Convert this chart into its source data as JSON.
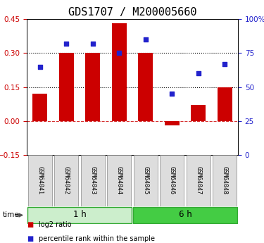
{
  "title": "GDS1707 / M200005660",
  "samples": [
    "GSM64041",
    "GSM64042",
    "GSM64043",
    "GSM64044",
    "GSM64045",
    "GSM64046",
    "GSM64047",
    "GSM64048"
  ],
  "log2_ratio": [
    0.12,
    0.3,
    0.3,
    0.43,
    0.3,
    -0.02,
    0.07,
    0.15
  ],
  "percentile_rank": [
    65,
    82,
    82,
    75,
    85,
    45,
    60,
    67
  ],
  "ylim_left": [
    -0.15,
    0.45
  ],
  "ylim_right": [
    0,
    100
  ],
  "yticks_left": [
    -0.15,
    0.0,
    0.15,
    0.3,
    0.45
  ],
  "yticks_right": [
    0,
    25,
    50,
    75,
    100
  ],
  "dotted_lines": [
    0.15,
    0.3
  ],
  "zero_line": 0.0,
  "bar_color": "#cc0000",
  "scatter_color": "#2222cc",
  "group1_label": "1 h",
  "group2_label": "6 h",
  "group1_indices": [
    0,
    1,
    2,
    3
  ],
  "group2_indices": [
    4,
    5,
    6,
    7
  ],
  "group1_bg": "#cceecc",
  "group2_bg": "#44cc44",
  "group_border": "#33aa33",
  "legend_bar_label": "log2 ratio",
  "legend_scatter_label": "percentile rank within the sample",
  "time_label": "time",
  "left_tick_color": "#cc0000",
  "right_tick_color": "#2222cc",
  "title_fontsize": 11,
  "tick_fontsize": 7.5,
  "bar_width": 0.55,
  "sample_fontsize": 6,
  "legend_fontsize": 7,
  "group_fontsize": 8.5
}
